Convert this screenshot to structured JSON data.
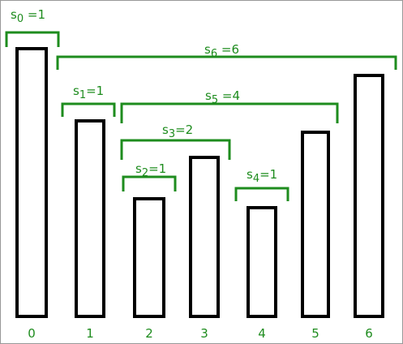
{
  "diagram": {
    "colors": {
      "bar_stroke": "#000000",
      "bracket": "#1e8c1e",
      "text": "#1e8c1e",
      "border": "#999999"
    },
    "bars": [
      {
        "index": "0",
        "height": 330
      },
      {
        "index": "1",
        "height": 241
      },
      {
        "index": "2",
        "height": 145
      },
      {
        "index": "3",
        "height": 196
      },
      {
        "index": "4",
        "height": 134
      },
      {
        "index": "5",
        "height": 227
      },
      {
        "index": "6",
        "height": 297
      }
    ],
    "spans": [
      {
        "sub": "0",
        "eq": " =1",
        "value": 1,
        "from_bar": 0,
        "to_bar": 0
      },
      {
        "sub": "1",
        "eq": "=1",
        "value": 1,
        "from_bar": 1,
        "to_bar": 1
      },
      {
        "sub": "2",
        "eq": "=1",
        "value": 1,
        "from_bar": 2,
        "to_bar": 2
      },
      {
        "sub": "3",
        "eq": "=2",
        "value": 2,
        "from_bar": 2,
        "to_bar": 3
      },
      {
        "sub": "4",
        "eq": "=1",
        "value": 1,
        "from_bar": 4,
        "to_bar": 4
      },
      {
        "sub": "5",
        "eq": " =4",
        "value": 4,
        "from_bar": 2,
        "to_bar": 5
      },
      {
        "sub": "6",
        "eq": " =6",
        "value": 6,
        "from_bar": 1,
        "to_bar": 6
      }
    ]
  }
}
